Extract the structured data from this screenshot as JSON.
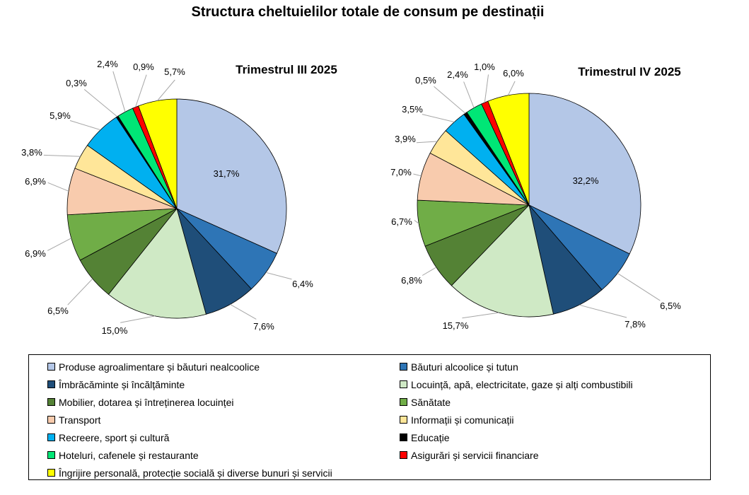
{
  "chart_data": {
    "title": "Structura cheltuielilor totale de consum pe destinații",
    "categories": [
      "Produse agroalimentare și băuturi nealcoolice",
      "Băuturi alcoolice și tutun",
      "Îmbrăcăminte și încălțăminte",
      "Locuință, apă, electricitate, gaze și alți combustibili",
      "Mobilier,  dotarea și întreținerea locuinței",
      "Sănătate",
      "Transport",
      "Informații și comunicații",
      "Recreere, sport și cultură",
      "Educație",
      "Hoteluri,  cafenele și restaurante",
      "Asigurări și servicii financiare",
      "Îngrijire personală, protecție socială și diverse bunuri și servicii"
    ],
    "colors": [
      "#b4c7e7",
      "#2e75b6",
      "#1f4e79",
      "#cfe9c5",
      "#548235",
      "#70ad47",
      "#f8cbad",
      "#ffe699",
      "#00b0f0",
      "#000000",
      "#00e676",
      "#ff0000",
      "#ffff00"
    ],
    "charts": [
      {
        "type": "pie",
        "title": "Trimestrul  III 2025",
        "values": [
          31.7,
          6.4,
          7.6,
          15.0,
          6.5,
          6.9,
          6.9,
          3.8,
          5.9,
          0.3,
          2.4,
          0.9,
          5.7
        ],
        "labels": [
          "31,7%",
          "6,4%",
          "7,6%",
          "15,0%",
          "6,5%",
          "6,9%",
          "6,9%",
          "3,8%",
          "5,9%",
          "0,3%",
          "2,4%",
          "0,9%",
          "5,7%"
        ]
      },
      {
        "type": "pie",
        "title": "Trimestrul  IV 2025",
        "values": [
          32.2,
          6.5,
          7.8,
          15.7,
          6.8,
          6.7,
          7.0,
          3.9,
          3.5,
          0.5,
          2.4,
          1.0,
          6.0
        ],
        "labels": [
          "32,2%",
          "6,5%",
          "7,8%",
          "15,7%",
          "6,8%",
          "6,7%",
          "7,0%",
          "3,9%",
          "3,5%",
          "0,5%",
          "2,4%",
          "1,0%",
          "6,0%"
        ]
      }
    ],
    "legend": "bottom"
  }
}
